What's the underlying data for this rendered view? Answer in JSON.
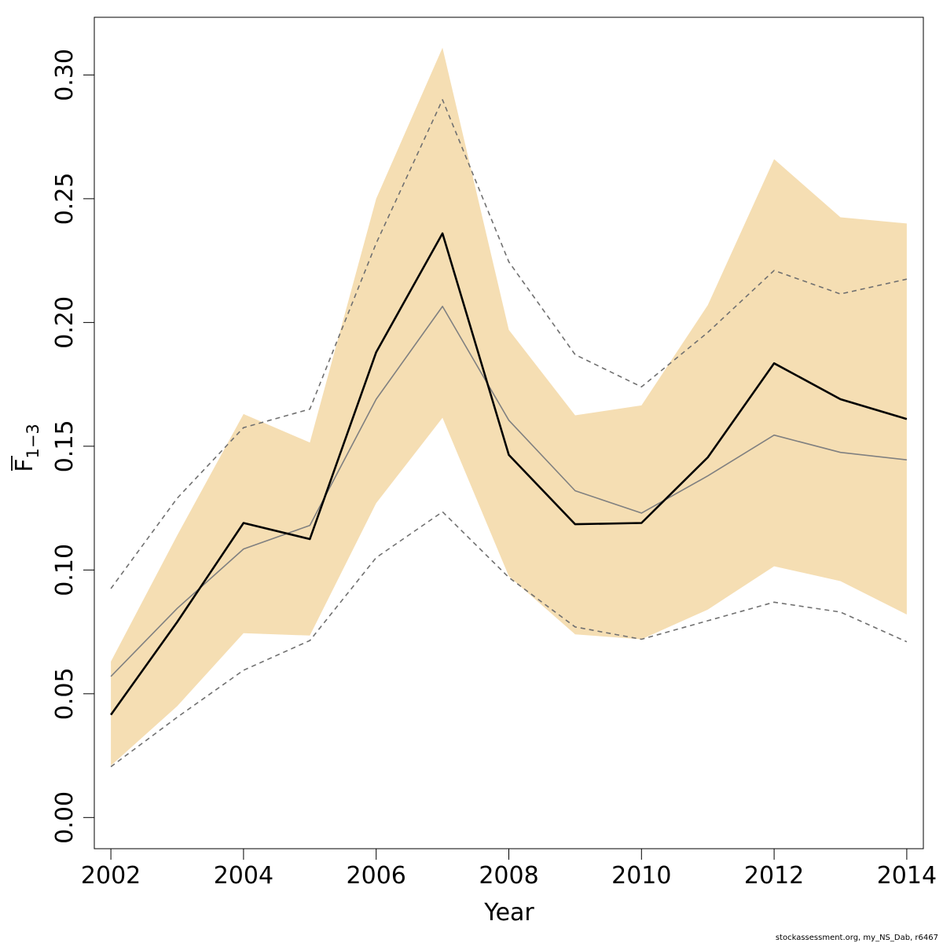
{
  "chart_data": {
    "type": "line",
    "title": "",
    "xlabel": "Year",
    "ylabel_main": "F",
    "ylabel_sub": "1−3",
    "ylabel_overline": true,
    "xlim": [
      2001.75,
      2014.25
    ],
    "ylim": [
      -0.0126,
      0.3233
    ],
    "x_ticks": [
      2002,
      2004,
      2006,
      2008,
      2010,
      2012,
      2014
    ],
    "y_ticks": [
      0.0,
      0.05,
      0.1,
      0.15,
      0.2,
      0.25,
      0.3
    ],
    "y_tick_labels": [
      "0.00",
      "0.05",
      "0.10",
      "0.15",
      "0.20",
      "0.25",
      "0.30"
    ],
    "grid": false,
    "x": [
      2002,
      2003,
      2004,
      2005,
      2006,
      2007,
      2008,
      2009,
      2010,
      2011,
      2012,
      2013,
      2014
    ],
    "series": [
      {
        "role": "confidence-band",
        "color": "#F5DEB3",
        "lower": [
          0.021,
          0.045,
          0.0745,
          0.0735,
          0.127,
          0.1615,
          0.0975,
          0.074,
          0.072,
          0.084,
          0.1015,
          0.0955,
          0.082
        ],
        "upper": [
          0.063,
          0.114,
          0.163,
          0.1515,
          0.25,
          0.311,
          0.197,
          0.1625,
          0.1665,
          0.207,
          0.266,
          0.2425,
          0.24
        ]
      },
      {
        "role": "estimate",
        "color": "#000000",
        "values": [
          0.0415,
          0.079,
          0.119,
          0.1125,
          0.188,
          0.236,
          0.1465,
          0.1185,
          0.119,
          0.1455,
          0.1835,
          0.169,
          0.161
        ]
      },
      {
        "role": "alternative-estimate",
        "color": "#808080",
        "values": [
          0.057,
          0.0845,
          0.1085,
          0.118,
          0.169,
          0.2065,
          0.1605,
          0.132,
          0.123,
          0.138,
          0.1545,
          0.1475,
          0.1445
        ]
      },
      {
        "role": "alternative-upper",
        "color": "#707070",
        "dashed": true,
        "values": [
          0.0925,
          0.129,
          0.1575,
          0.165,
          0.232,
          0.29,
          0.2245,
          0.187,
          0.174,
          0.196,
          0.221,
          0.2115,
          0.2175
        ]
      },
      {
        "role": "alternative-lower",
        "color": "#707070",
        "dashed": true,
        "values": [
          0.0205,
          0.0405,
          0.0595,
          0.0715,
          0.105,
          0.1235,
          0.097,
          0.077,
          0.072,
          0.0795,
          0.087,
          0.083,
          0.071
        ]
      }
    ]
  },
  "footer": "stockassessment.org, my_NS_Dab, r6467"
}
